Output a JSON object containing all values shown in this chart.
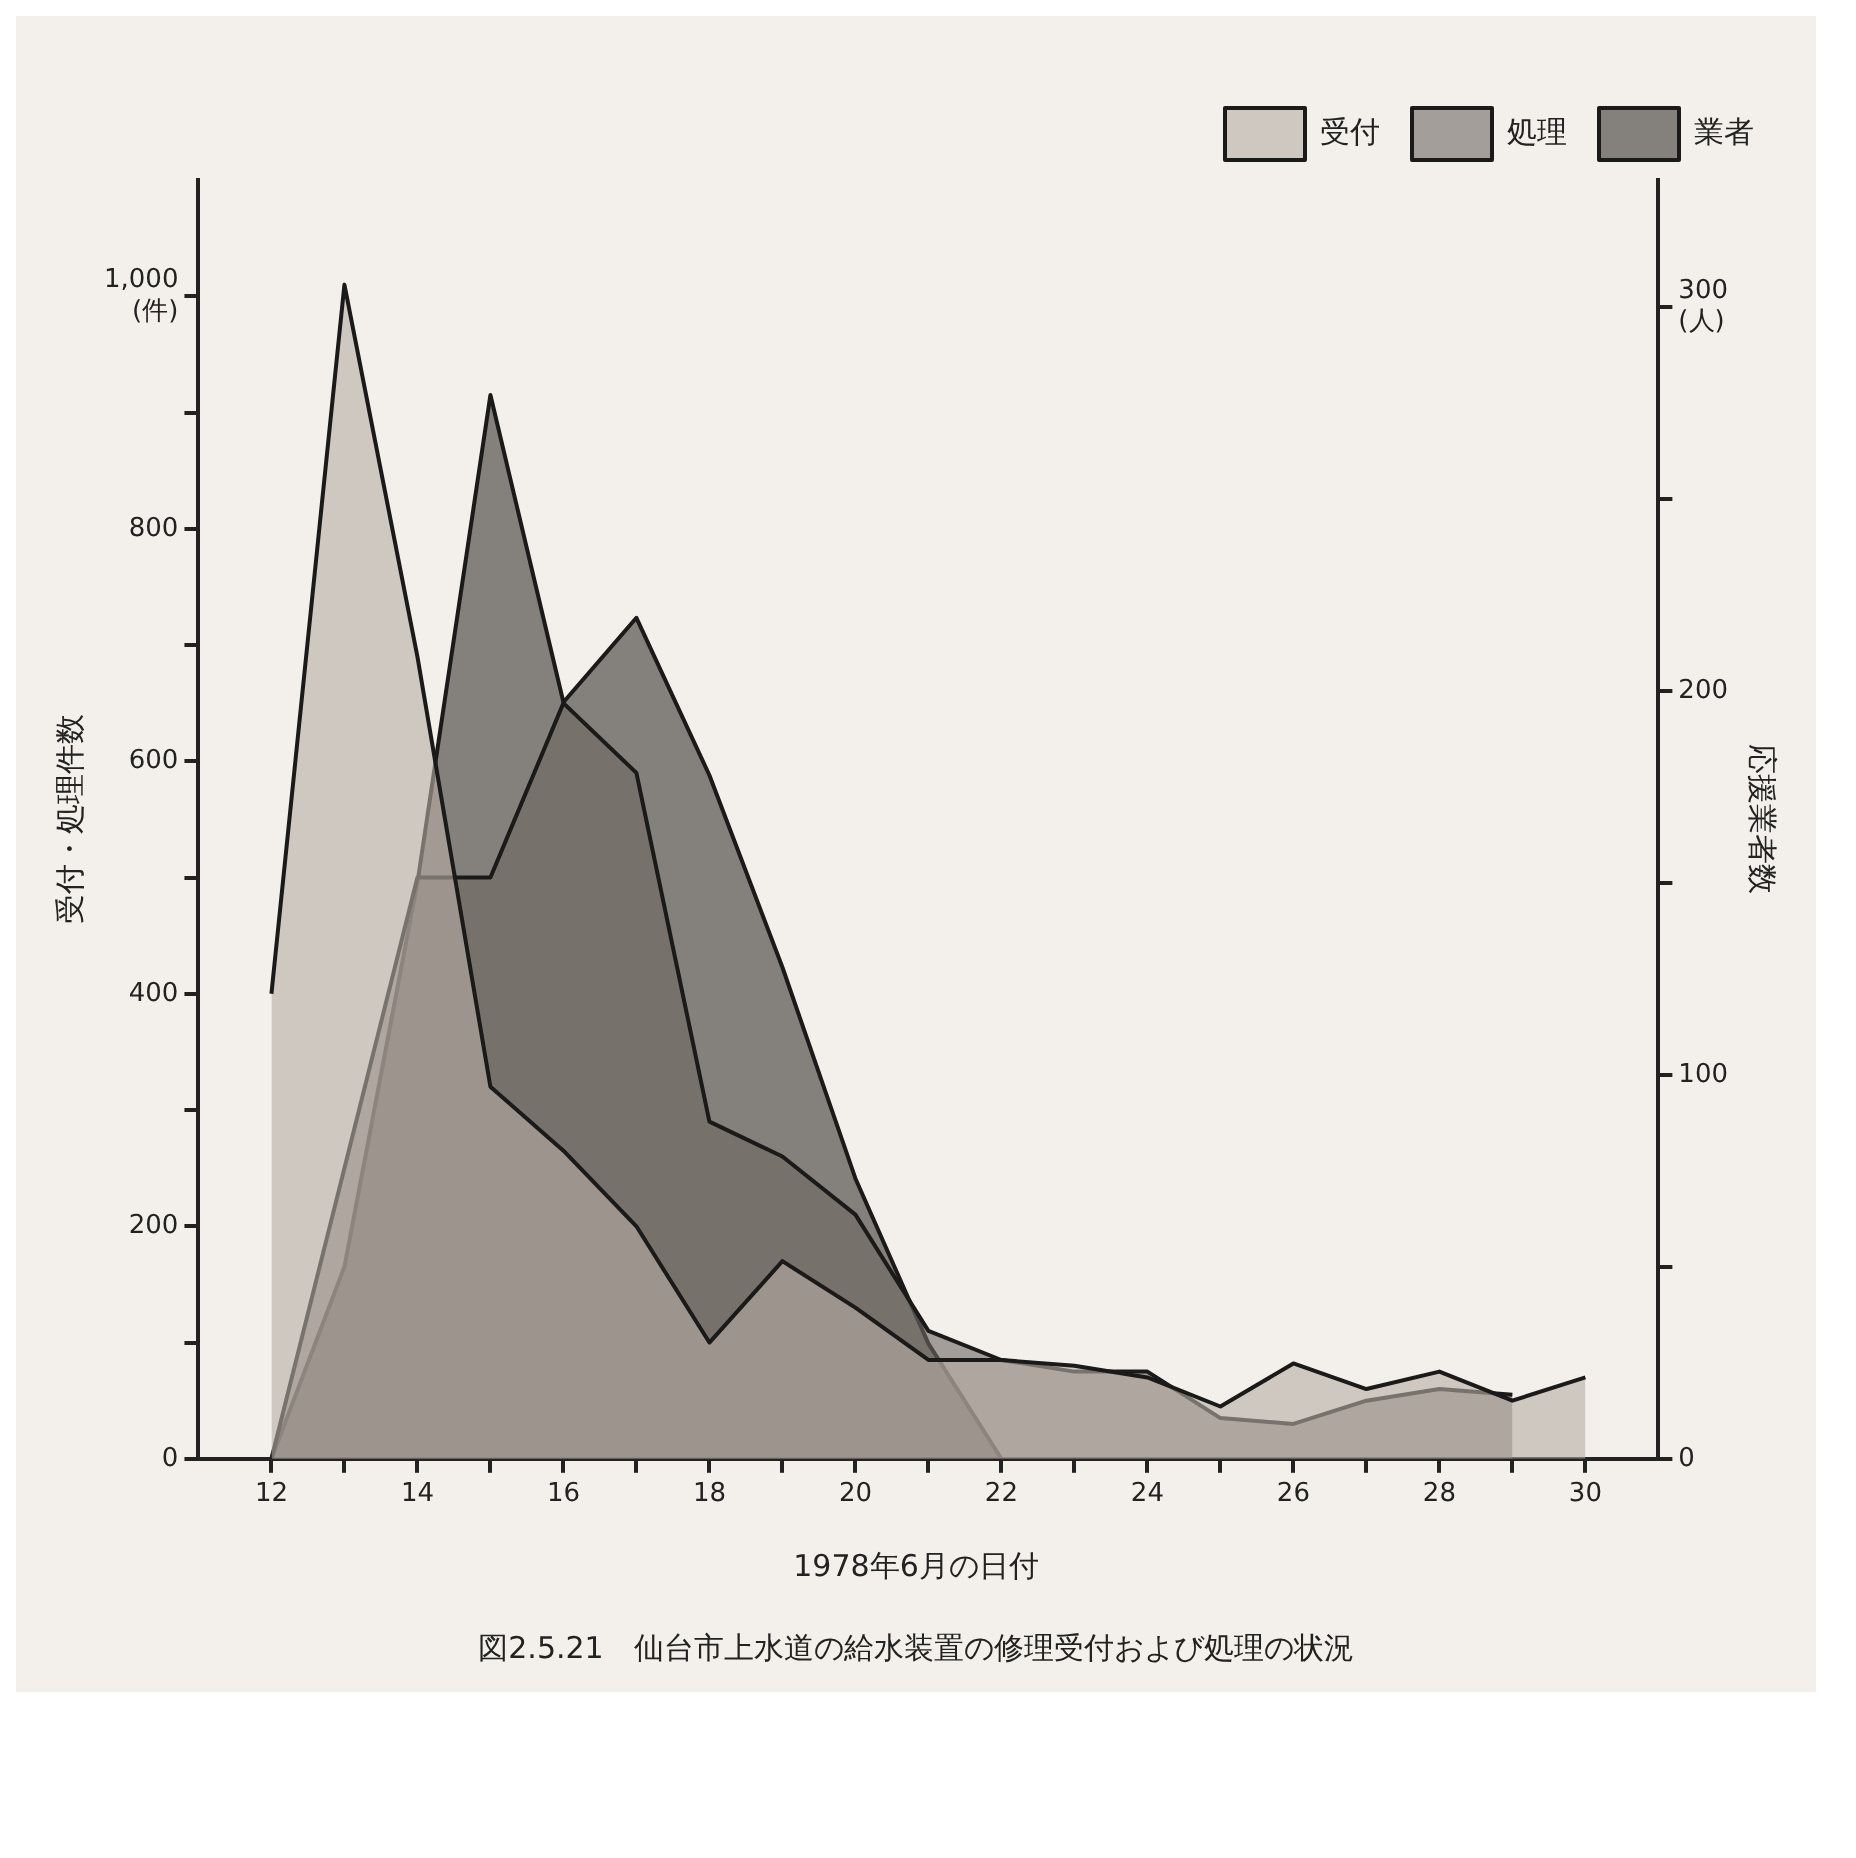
{
  "chart_data": {
    "type": "area",
    "xlabel": "1978年6月の日付",
    "ylabel": "受付・処理件数",
    "y2label": "応援業者数",
    "annotations": [
      "図2.5.21　仙台市上水道の給水装置の修理受付および処理の状況"
    ],
    "series": [
      {
        "name": "受付",
        "color": "#b8aea4",
        "x": [
          12,
          13,
          14,
          15,
          16,
          17,
          18,
          19,
          20,
          21,
          22,
          23,
          24,
          25,
          26,
          27,
          28,
          29,
          30
        ],
        "values": [
          400,
          1010,
          690,
          320,
          265,
          200,
          100,
          170,
          130,
          85,
          85,
          80,
          70,
          45,
          82,
          60,
          75,
          50,
          70
        ]
      },
      {
        "name": "処理",
        "color": "#6e6862",
        "x": [
          12,
          13,
          14,
          15,
          16,
          17,
          18,
          19,
          20,
          21,
          22,
          23,
          24,
          25,
          26,
          27,
          28,
          29
        ],
        "values": [
          0,
          250,
          500,
          500,
          650,
          590,
          290,
          260,
          210,
          110,
          85,
          75,
          75,
          35,
          30,
          50,
          60,
          55
        ]
      },
      {
        "name": "業者",
        "color": "#3a3632",
        "axis": "y2",
        "x": [
          12,
          13,
          14,
          15,
          16,
          17,
          18,
          19,
          20,
          21,
          22
        ],
        "values": [
          0,
          50,
          150,
          277,
          197,
          219,
          178,
          128,
          73,
          30,
          0
        ]
      }
    ],
    "xlim": [
      11,
      31
    ],
    "xticks": [
      12,
      {
        "value": 13,
        "label": null
      },
      14,
      {
        "value": 15,
        "label": null
      },
      16,
      {
        "value": 17,
        "label": null
      },
      18,
      {
        "value": 19,
        "label": null
      },
      20,
      {
        "value": 21,
        "label": null
      },
      22,
      {
        "value": 23,
        "label": null
      },
      24,
      {
        "value": 25,
        "label": null
      },
      26,
      {
        "value": 27,
        "label": null
      },
      28,
      {
        "value": 29,
        "label": null
      },
      30
    ],
    "ylim": [
      0,
      1100
    ],
    "yticks": [
      0,
      {
        "value": 100,
        "label": null
      },
      200,
      {
        "value": 300,
        "label": null
      },
      400,
      {
        "value": 500,
        "label": null
      },
      600,
      {
        "value": 700,
        "label": null
      },
      800,
      {
        "value": 900,
        "label": null
      },
      {
        "value": 1000,
        "label": "1,000\n(件)"
      }
    ],
    "y2lim": [
      0,
      333
    ],
    "y2ticks": [
      0,
      {
        "value": 50,
        "label": null
      },
      100,
      {
        "value": 150,
        "label": null
      },
      200,
      {
        "value": 250,
        "label": null
      },
      {
        "value": 300,
        "label": "300\n(人)"
      }
    ],
    "grid": false,
    "legend": "top right",
    "marker": "none",
    "line_style": "solid"
  }
}
